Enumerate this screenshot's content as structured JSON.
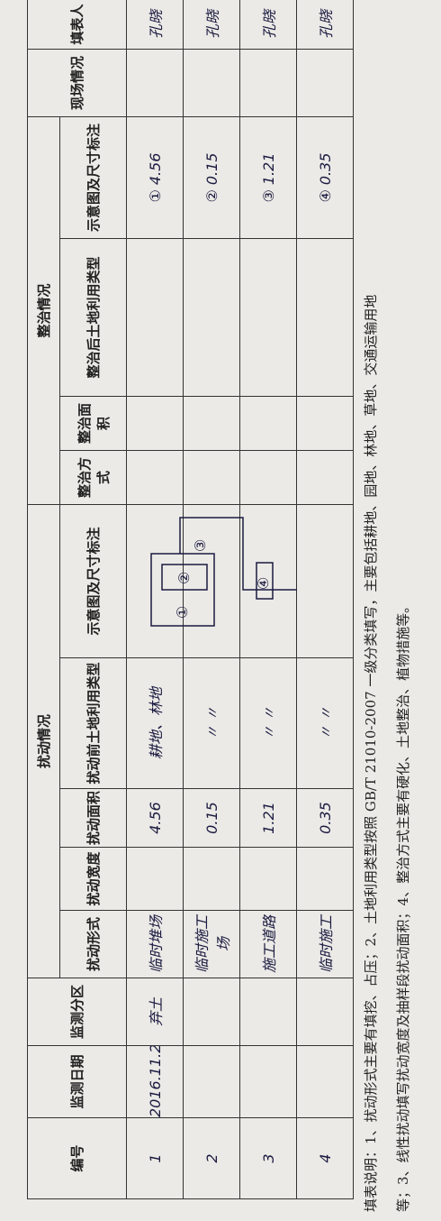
{
  "table": {
    "headers": {
      "no": "编号",
      "date": "监测日期",
      "zone": "监测分区",
      "disturb": "扰动情况",
      "form": "扰动形式",
      "width": "扰动宽度",
      "area": "扰动面积",
      "before_type": "扰动前土地利用类型",
      "sketch": "示意图及尺寸标注",
      "remedy": "整治情况",
      "method": "整治方式",
      "remedy_area": "整治面积",
      "after_type": "整治后土地利用类型",
      "remedy_sketch": "示意图及尺寸标注",
      "site": "现场情况",
      "filler": "填表人"
    },
    "rows": [
      {
        "no": "1",
        "date": "2016.11.2",
        "zone": "弃土",
        "form": "临时堆场",
        "area": "4.56",
        "before_type": "耕地、林地",
        "remedy_sketch": "① 4.56",
        "filler": "孔晓"
      },
      {
        "no": "2",
        "form": "临时施工场",
        "area": "0.15",
        "before_type": "〃 〃",
        "remedy_sketch": "② 0.15",
        "filler": "孔晓"
      },
      {
        "no": "3",
        "form": "施工道路",
        "area": "1.21",
        "before_type": "〃 〃",
        "remedy_sketch": "③ 1.21",
        "filler": "孔晓"
      },
      {
        "no": "4",
        "form": "临时施工",
        "area": "0.35",
        "before_type": "〃 〃",
        "remedy_sketch": "④ 0.35",
        "filler": "孔晓"
      }
    ],
    "sketch_labels": [
      "①",
      "②",
      "③",
      "④"
    ]
  },
  "notes": [
    "填表说明：1、扰动形式主要有填挖、占压；2、土地利用类型按照 GB/T 21010-2007 一级分类填写，主要包括耕地、园地、林地、草地、交通运输用地",
    "等；3、线性扰动填写扰动宽度及抽样段扰动面积；4、整治方式主要有硬化、土地整治、植物措施等。"
  ]
}
